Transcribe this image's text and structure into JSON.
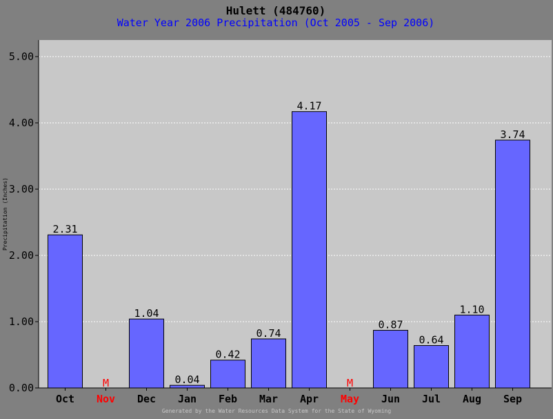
{
  "chart_data": {
    "type": "bar",
    "title": "Hulett (484760)",
    "subtitle": "Water Year 2006 Precipitation (Oct 2005 - Sep 2006)",
    "ylabel": "Precipitation (Inches)",
    "footer": "Generated by the Water Resources Data System for the State of Wyoming",
    "categories": [
      "Oct",
      "Nov",
      "Dec",
      "Jan",
      "Feb",
      "Mar",
      "Apr",
      "May",
      "Jun",
      "Jul",
      "Aug",
      "Sep"
    ],
    "values": [
      2.31,
      null,
      1.04,
      0.04,
      0.42,
      0.74,
      4.17,
      null,
      0.87,
      0.64,
      1.1,
      3.74
    ],
    "value_labels": [
      "2.31",
      "M",
      "1.04",
      "0.04",
      "0.42",
      "0.74",
      "4.17",
      "M",
      "0.87",
      "0.64",
      "1.10",
      "3.74"
    ],
    "missing": [
      false,
      true,
      false,
      false,
      false,
      false,
      false,
      true,
      false,
      false,
      false,
      false
    ],
    "ylim": [
      0,
      5
    ],
    "yticks": [
      "0.00",
      "1.00",
      "2.00",
      "3.00",
      "4.00",
      "5.00"
    ],
    "grid": true,
    "colors": {
      "background": "#808080",
      "plot_background": "#c8c8c8",
      "bar": "#6666ff",
      "missing": "#ff0000",
      "title": "#000000",
      "subtitle": "#0000ff",
      "gridline": "#ffffff",
      "footer": "#c8c8c8"
    }
  }
}
